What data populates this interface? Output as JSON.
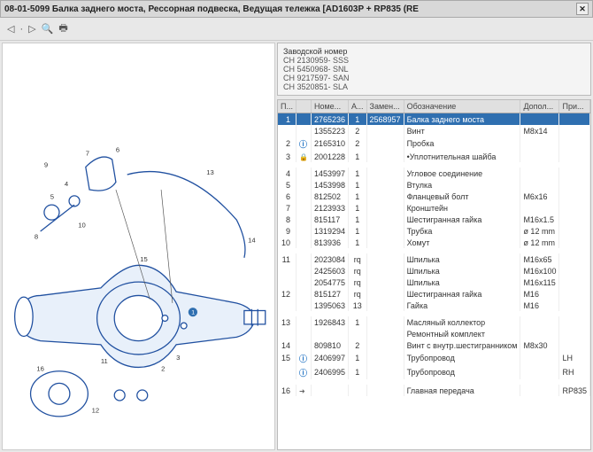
{
  "title": "08-01-5099 Балка заднего моста, Рессорная подвеска, Ведущая тележка [AD1603P + RP835 (RE",
  "toolbar": {
    "back": "◁",
    "fwd": "▷",
    "sep": "·",
    "zoom": "🔍",
    "print": "🖶"
  },
  "refbox": {
    "title": "Заводской номер",
    "lines": [
      "CH 2130959- SSS",
      "CH 5450968- SNL",
      "CH 9217597- SAN",
      "CH 3520851- SLA"
    ]
  },
  "table": {
    "headers": [
      "П...",
      "",
      "Номе...",
      "А...",
      "Замен...",
      "Обозначение",
      "Допол...",
      "При..."
    ],
    "rows": [
      {
        "sel": true,
        "p": "1",
        "icon": "",
        "num": "2765236",
        "a": "1",
        "rep": "2568957",
        "desc": "Балка заднего моста",
        "ext": "",
        "note": ""
      },
      {
        "p": "",
        "icon": "",
        "num": "1355223",
        "a": "2",
        "rep": "",
        "desc": "Винт",
        "ext": "M8x14",
        "note": ""
      },
      {
        "p": "2",
        "icon": "info",
        "num": "2165310",
        "a": "2",
        "rep": "",
        "desc": "Пробка",
        "ext": "",
        "note": ""
      },
      {
        "p": "3",
        "icon": "lock",
        "num": "2001228",
        "a": "1",
        "rep": "",
        "desc": "•Уплотнительная шайба",
        "ext": "",
        "note": ""
      },
      {
        "spacer": true
      },
      {
        "p": "4",
        "icon": "",
        "num": "1453997",
        "a": "1",
        "rep": "",
        "desc": "Угловое соединение",
        "ext": "",
        "note": ""
      },
      {
        "p": "5",
        "icon": "",
        "num": "1453998",
        "a": "1",
        "rep": "",
        "desc": "Втулка",
        "ext": "",
        "note": ""
      },
      {
        "p": "6",
        "icon": "",
        "num": "812502",
        "a": "1",
        "rep": "",
        "desc": "Фланцевый болт",
        "ext": "M6x16",
        "note": ""
      },
      {
        "p": "7",
        "icon": "",
        "num": "2123933",
        "a": "1",
        "rep": "",
        "desc": "Кронштейн",
        "ext": "",
        "note": ""
      },
      {
        "p": "8",
        "icon": "",
        "num": "815117",
        "a": "1",
        "rep": "",
        "desc": "Шестигранная гайка",
        "ext": "M16x1.5",
        "note": ""
      },
      {
        "p": "9",
        "icon": "",
        "num": "1319294",
        "a": "1",
        "rep": "",
        "desc": "Трубка",
        "ext": "ø 12 mm",
        "note": ""
      },
      {
        "p": "10",
        "icon": "",
        "num": "813936",
        "a": "1",
        "rep": "",
        "desc": "Хомут",
        "ext": "ø 12 mm",
        "note": ""
      },
      {
        "spacer": true
      },
      {
        "p": "11",
        "icon": "",
        "num": "2023084",
        "a": "rq",
        "rep": "",
        "desc": "Шпилька",
        "ext": "M16x65",
        "note": ""
      },
      {
        "p": "",
        "icon": "",
        "num": "2425603",
        "a": "rq",
        "rep": "",
        "desc": "Шпилька",
        "ext": "M16x100",
        "note": ""
      },
      {
        "p": "",
        "icon": "",
        "num": "2054775",
        "a": "rq",
        "rep": "",
        "desc": "Шпилька",
        "ext": "M16x115",
        "note": ""
      },
      {
        "p": "12",
        "icon": "",
        "num": "815127",
        "a": "rq",
        "rep": "",
        "desc": "Шестигранная гайка",
        "ext": "M16",
        "note": ""
      },
      {
        "p": "",
        "icon": "",
        "num": "1395063",
        "a": "13",
        "rep": "",
        "desc": "Гайка",
        "ext": "M16",
        "note": ""
      },
      {
        "spacer": true
      },
      {
        "p": "13",
        "icon": "",
        "num": "1926843",
        "a": "1",
        "rep": "",
        "desc": "Масляный коллектор",
        "ext": "",
        "note": ""
      },
      {
        "p": "",
        "icon": "",
        "num": "",
        "a": "",
        "rep": "",
        "desc": "Ремонтный комплект",
        "ext": "",
        "note": ""
      },
      {
        "p": "14",
        "icon": "",
        "num": "809810",
        "a": "2",
        "rep": "",
        "desc": "Винт с внутр.шестигранником",
        "ext": "M8x30",
        "note": ""
      },
      {
        "p": "15",
        "icon": "info",
        "num": "2406997",
        "a": "1",
        "rep": "",
        "desc": "Трубопровод",
        "ext": "",
        "note": "LH"
      },
      {
        "p": "",
        "icon": "info",
        "num": "2406995",
        "a": "1",
        "rep": "",
        "desc": "Трубопровод",
        "ext": "",
        "note": "RH"
      },
      {
        "spacer": true
      },
      {
        "p": "16",
        "icon": "arrow",
        "num": "",
        "a": "",
        "rep": "",
        "desc": "Главная передача",
        "ext": "",
        "note": "RP835"
      }
    ]
  },
  "diagram": {
    "callouts": [
      "1",
      "2",
      "3",
      "4",
      "5",
      "6",
      "7",
      "8",
      "9",
      "10",
      "11",
      "12",
      "13",
      "14",
      "15",
      "16"
    ],
    "stroke": "#2050a0",
    "fill": "#bcd2ec"
  }
}
